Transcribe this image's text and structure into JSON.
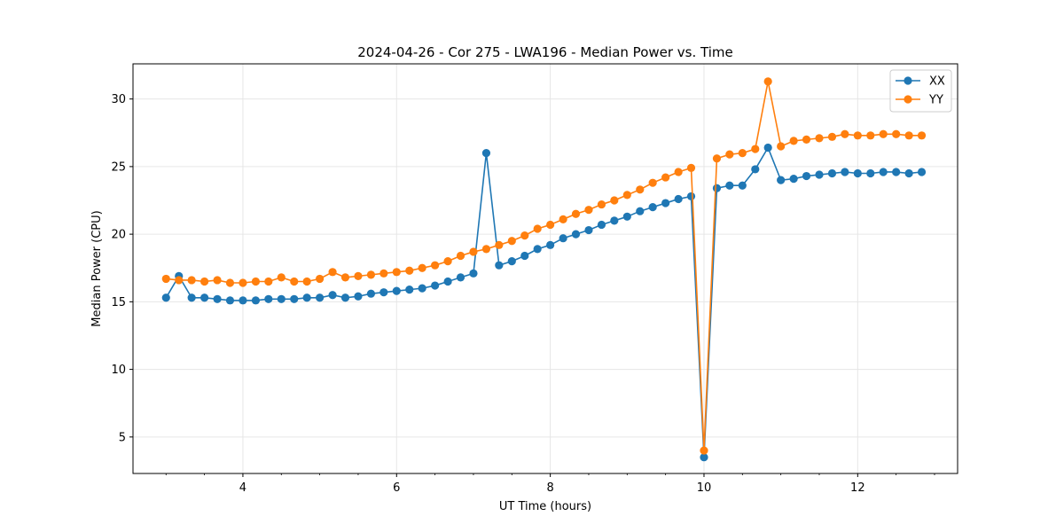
{
  "chart_data": {
    "type": "line",
    "title": "2024-04-26 - Cor 275 - LWA196 - Median Power vs. Time",
    "xlabel": "UT Time (hours)",
    "ylabel": "Median Power (CPU)",
    "xlim": [
      2.57,
      13.3
    ],
    "ylim": [
      2.3,
      32.6
    ],
    "xticks": [
      4,
      6,
      8,
      10,
      12
    ],
    "xtick_labels": [
      "4",
      "6",
      "8",
      "10",
      "12"
    ],
    "yticks": [
      5,
      10,
      15,
      20,
      25,
      30
    ],
    "ytick_labels": [
      "5",
      "10",
      "15",
      "20",
      "25",
      "30"
    ],
    "grid": true,
    "legend_position": "top-right",
    "x": [
      3.0,
      3.167,
      3.333,
      3.5,
      3.667,
      3.833,
      4.0,
      4.167,
      4.333,
      4.5,
      4.667,
      4.833,
      5.0,
      5.167,
      5.333,
      5.5,
      5.667,
      5.833,
      6.0,
      6.167,
      6.333,
      6.5,
      6.667,
      6.833,
      7.0,
      7.167,
      7.333,
      7.5,
      7.667,
      7.833,
      8.0,
      8.167,
      8.333,
      8.5,
      8.667,
      8.833,
      9.0,
      9.167,
      9.333,
      9.5,
      9.667,
      9.833,
      10.0,
      10.167,
      10.333,
      10.5,
      10.667,
      10.833,
      11.0,
      11.167,
      11.333,
      11.5,
      11.667,
      11.833,
      12.0,
      12.167,
      12.333,
      12.5,
      12.667,
      12.833
    ],
    "series": [
      {
        "name": "XX",
        "color": "#1f77b4",
        "values": [
          15.3,
          16.9,
          15.3,
          15.3,
          15.2,
          15.1,
          15.1,
          15.1,
          15.2,
          15.2,
          15.2,
          15.3,
          15.3,
          15.5,
          15.3,
          15.4,
          15.6,
          15.7,
          15.8,
          15.9,
          16.0,
          16.2,
          16.5,
          16.8,
          17.1,
          26.0,
          17.7,
          18.0,
          18.4,
          18.9,
          19.2,
          19.7,
          20.0,
          20.3,
          20.7,
          21.0,
          21.3,
          21.7,
          22.0,
          22.3,
          22.6,
          22.8,
          3.5,
          23.4,
          23.6,
          23.6,
          24.8,
          26.4,
          24.0,
          24.1,
          24.3,
          24.4,
          24.5,
          24.6,
          24.5,
          24.5,
          24.6,
          24.6,
          24.5,
          24.6
        ]
      },
      {
        "name": "YY",
        "color": "#ff7f0e",
        "values": [
          16.7,
          16.6,
          16.6,
          16.5,
          16.6,
          16.4,
          16.4,
          16.5,
          16.5,
          16.8,
          16.5,
          16.5,
          16.7,
          17.2,
          16.8,
          16.9,
          17.0,
          17.1,
          17.2,
          17.3,
          17.5,
          17.7,
          18.0,
          18.4,
          18.7,
          18.9,
          19.2,
          19.5,
          19.9,
          20.4,
          20.7,
          21.1,
          21.5,
          21.8,
          22.2,
          22.5,
          22.9,
          23.3,
          23.8,
          24.2,
          24.6,
          24.9,
          4.0,
          25.6,
          25.9,
          26.0,
          26.3,
          31.3,
          26.5,
          26.9,
          27.0,
          27.1,
          27.2,
          27.4,
          27.3,
          27.3,
          27.4,
          27.4,
          27.3,
          27.3
        ]
      }
    ]
  }
}
